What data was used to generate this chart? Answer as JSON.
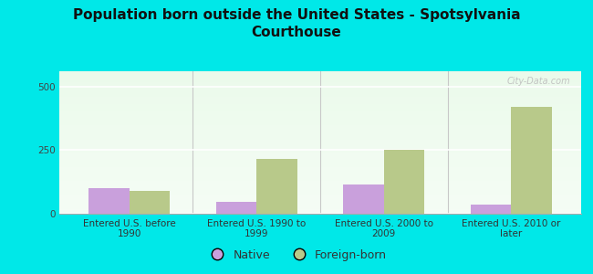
{
  "title": "Population born outside the United States - Spotsylvania\nCourthouse",
  "categories": [
    "Entered U.S. before\n1990",
    "Entered U.S. 1990 to\n1999",
    "Entered U.S. 2000 to\n2009",
    "Entered U.S. 2010 or\nlater"
  ],
  "native_values": [
    100,
    45,
    115,
    35
  ],
  "foreign_values": [
    90,
    215,
    250,
    420
  ],
  "native_color": "#c9a0dc",
  "foreign_color": "#b8c98a",
  "background_color": "#00e8e8",
  "ylim": [
    0,
    560
  ],
  "yticks": [
    0,
    250,
    500
  ],
  "legend_native": "Native",
  "legend_foreign": "Foreign-born",
  "bar_width": 0.32,
  "title_fontsize": 11,
  "tick_fontsize": 7.5,
  "legend_fontsize": 9,
  "watermark": "City-Data.com",
  "separator_color": "#c8c8c8",
  "grid_color": "#e0e8e0",
  "spine_color": "#aaaaaa"
}
